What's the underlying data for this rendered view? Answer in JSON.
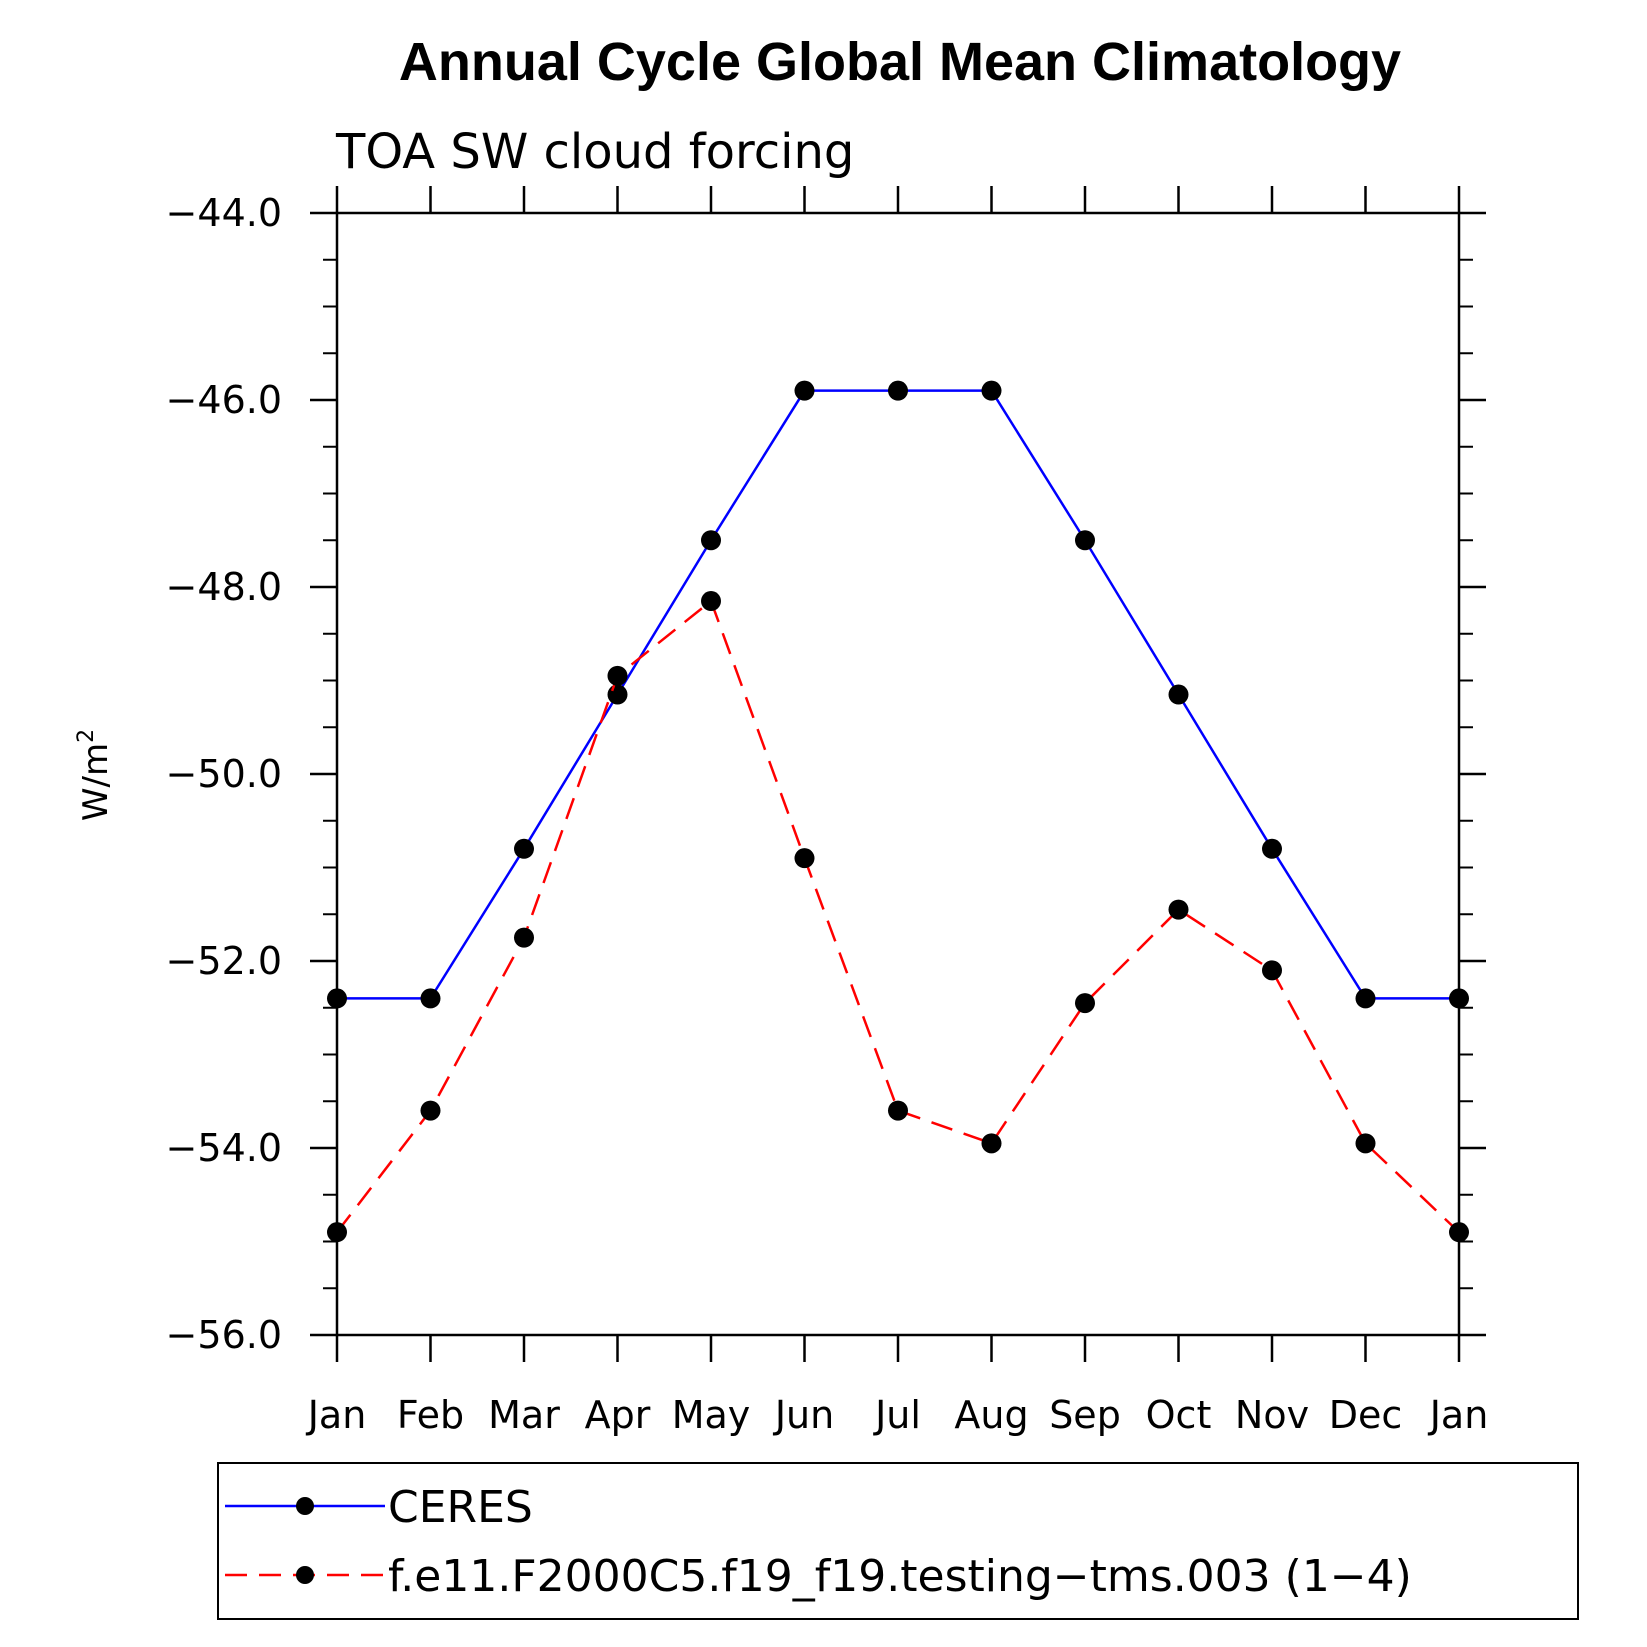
{
  "chart_data": {
    "type": "line",
    "title": "Annual Cycle Global Mean Climatology",
    "subtitle": "TOA SW cloud forcing",
    "ylabel": "W/m",
    "ylabel_superscript": "2",
    "ylim": [
      -56.0,
      -44.0
    ],
    "yticks": [
      -44.0,
      -46.0,
      -48.0,
      -50.0,
      -52.0,
      -54.0,
      -56.0
    ],
    "ytick_labels": [
      "−44.0",
      "−46.0",
      "−48.0",
      "−50.0",
      "−52.0",
      "−54.0",
      "−56.0"
    ],
    "categories": [
      "Jan",
      "Feb",
      "Mar",
      "Apr",
      "May",
      "Jun",
      "Jul",
      "Aug",
      "Sep",
      "Oct",
      "Nov",
      "Dec",
      "Jan"
    ],
    "series": [
      {
        "name": "CERES",
        "color": "#0000ff",
        "dash": "solid",
        "marker": "filled-circle",
        "values": [
          -52.4,
          -52.4,
          -50.8,
          -49.15,
          -47.5,
          -45.9,
          -45.9,
          -45.9,
          -47.5,
          -49.15,
          -50.8,
          -52.4,
          -52.4
        ]
      },
      {
        "name": "f.e11.F2000C5.f19_f19.testing−tms.003 (1−4)",
        "color": "#ff0000",
        "dash": "dashed",
        "marker": "filled-circle",
        "values": [
          -54.9,
          -53.6,
          -51.75,
          -48.95,
          -48.15,
          -50.9,
          -53.6,
          -53.95,
          -52.45,
          -51.45,
          -52.1,
          -53.95,
          -54.9
        ]
      }
    ],
    "legend_position": "bottom",
    "grid": false
  }
}
